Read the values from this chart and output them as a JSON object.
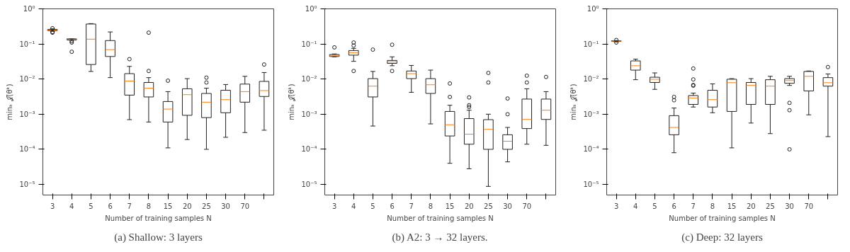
{
  "chart_data": [
    {
      "type": "box",
      "title": "(a) Shallow: 3 layers",
      "xlabel": "Number of training samples N",
      "ylabel": "minₖ 𝒥(θᵏ)",
      "categories": [
        "3",
        "4",
        "5",
        "6",
        "7",
        "8",
        "15",
        "20",
        "25",
        "30",
        "70",
        null
      ],
      "log": "y",
      "grid": false,
      "ylim": [
        5e-06,
        1
      ],
      "yticks": [
        {
          "value": 1e-05,
          "label": "10⁻⁵"
        },
        {
          "value": 0.0001,
          "label": "10⁻⁴"
        },
        {
          "value": 0.001,
          "label": "10⁻³"
        },
        {
          "value": 0.01,
          "label": "10⁻²"
        },
        {
          "value": 0.1,
          "label": "10⁻¹"
        },
        {
          "value": 1,
          "label": "10⁰"
        }
      ],
      "boxes": [
        {
          "low": 0.23,
          "q1": 0.24,
          "median": 0.25,
          "q3": 0.26,
          "high": 0.27,
          "outliers": [
            0.21,
            0.22,
            0.28
          ]
        },
        {
          "low": 0.13,
          "q1": 0.13,
          "median": 0.137,
          "q3": 0.14,
          "high": 0.14,
          "outliers": [
            0.06,
            0.11,
            0.12
          ]
        },
        {
          "low": 0.0165,
          "q1": 0.026,
          "median": 0.137,
          "q3": 0.37,
          "high": 0.38
        },
        {
          "low": 0.011,
          "q1": 0.044,
          "median": 0.069,
          "q3": 0.125,
          "high": 0.22
        },
        {
          "low": 0.0007,
          "q1": 0.0035,
          "median": 0.0088,
          "q3": 0.0143,
          "high": 0.023,
          "outliers": [
            0.037
          ]
        },
        {
          "low": 0.0006,
          "q1": 0.0031,
          "median": 0.0055,
          "q3": 0.008,
          "high": 0.011,
          "outliers": [
            0.017,
            0.21
          ]
        },
        {
          "low": 0.00011,
          "q1": 0.0006,
          "median": 0.0014,
          "q3": 0.0023,
          "high": 0.0044,
          "outliers": [
            0.009
          ]
        },
        {
          "low": 0.00019,
          "q1": 0.00093,
          "median": 0.0036,
          "q3": 0.0053,
          "high": 0.0103
        },
        {
          "low": 0.0001,
          "q1": 0.0008,
          "median": 0.0022,
          "q3": 0.0039,
          "high": 0.0055,
          "outliers": [
            0.008,
            0.011
          ]
        },
        {
          "low": 0.00022,
          "q1": 0.0011,
          "median": 0.0026,
          "q3": 0.0048,
          "high": 0.007
        },
        {
          "low": 0.0003,
          "q1": 0.0022,
          "median": 0.0044,
          "q3": 0.0072,
          "high": 0.012
        },
        {
          "low": 0.00035,
          "q1": 0.0032,
          "median": 0.0047,
          "q3": 0.0086,
          "high": 0.0154,
          "outliers": [
            0.026
          ]
        }
      ]
    },
    {
      "type": "box",
      "title": "(b) A2: 3 → 32 layers.",
      "xlabel": "Number of training samples N",
      "ylabel": "minₖ 𝒥(θᵏ)",
      "categories": [
        "3",
        "4",
        "5",
        "6",
        "7",
        "8",
        "15",
        "20",
        "25",
        "30",
        "70",
        null
      ],
      "log": "y",
      "grid": false,
      "ylim": [
        5e-06,
        1
      ],
      "yticks": [
        {
          "value": 1e-05,
          "label": "10⁻⁵"
        },
        {
          "value": 0.0001,
          "label": "10⁻⁴"
        },
        {
          "value": 0.001,
          "label": "10⁻³"
        },
        {
          "value": 0.01,
          "label": "10⁻²"
        },
        {
          "value": 0.1,
          "label": "10⁻¹"
        },
        {
          "value": 1,
          "label": "10⁰"
        }
      ],
      "boxes": [
        {
          "low": 0.043,
          "q1": 0.044,
          "median": 0.046,
          "q3": 0.05,
          "high": 0.052,
          "outliers": [
            0.08
          ]
        },
        {
          "low": 0.032,
          "q1": 0.048,
          "median": 0.056,
          "q3": 0.065,
          "high": 0.075,
          "outliers": [
            0.017,
            0.09,
            0.11
          ]
        },
        {
          "low": 0.00046,
          "q1": 0.0031,
          "median": 0.0063,
          "q3": 0.0103,
          "high": 0.0165,
          "outliers": [
            0.069
          ]
        },
        {
          "low": 0.024,
          "q1": 0.028,
          "median": 0.031,
          "q3": 0.034,
          "high": 0.043,
          "outliers": [
            0.017,
            0.095
          ]
        },
        {
          "low": 0.0042,
          "q1": 0.0103,
          "median": 0.0143,
          "q3": 0.017,
          "high": 0.0245
        },
        {
          "low": 0.00053,
          "q1": 0.0039,
          "median": 0.0069,
          "q3": 0.0103,
          "high": 0.018
        },
        {
          "low": 4e-05,
          "q1": 0.00024,
          "median": 0.0005,
          "q3": 0.0012,
          "high": 0.0018,
          "outliers": [
            0.0031,
            0.0075
          ]
        },
        {
          "low": 2.8e-05,
          "q1": 0.00014,
          "median": 0.00027,
          "q3": 0.00075,
          "high": 0.0013,
          "outliers": [
            0.0016,
            0.0018,
            0.003
          ]
        },
        {
          "low": 8.8e-06,
          "q1": 0.0001,
          "median": 0.00037,
          "q3": 0.0007,
          "high": 0.001,
          "outliers": [
            0.008,
            0.015
          ]
        },
        {
          "low": 4.4e-05,
          "q1": 0.0001,
          "median": 0.00017,
          "q3": 0.00026,
          "high": 0.00042,
          "outliers": [
            0.001,
            0.0028
          ]
        },
        {
          "low": 0.00014,
          "q1": 0.00039,
          "median": 0.00071,
          "q3": 0.0027,
          "high": 0.0053,
          "outliers": [
            0.008,
            0.0125
          ]
        },
        {
          "low": 0.00013,
          "q1": 0.00071,
          "median": 0.0013,
          "q3": 0.0027,
          "high": 0.0044,
          "outliers": [
            0.0115
          ]
        }
      ]
    },
    {
      "type": "box",
      "title": "(c) Deep: 32 layers",
      "xlabel": "Number of training samples N",
      "ylabel": "minₖ 𝒥(θᵏ)",
      "categories": [
        "3",
        "4",
        "5",
        "6",
        "7",
        "8",
        "15",
        "20",
        "25",
        "30",
        "70",
        null
      ],
      "log": "y",
      "grid": false,
      "ylim": [
        5e-06,
        1
      ],
      "yticks": [
        {
          "value": 1e-05,
          "label": "10⁻⁵"
        },
        {
          "value": 0.0001,
          "label": "10⁻⁴"
        },
        {
          "value": 0.001,
          "label": "10⁻³"
        },
        {
          "value": 0.01,
          "label": "10⁻²"
        },
        {
          "value": 0.1,
          "label": "10⁻¹"
        },
        {
          "value": 1,
          "label": "10⁰"
        }
      ],
      "boxes": [
        {
          "low": 0.115,
          "q1": 0.118,
          "median": 0.12,
          "q3": 0.123,
          "high": 0.125,
          "outliers": [
            0.11,
            0.13
          ]
        },
        {
          "low": 0.0096,
          "q1": 0.018,
          "median": 0.024,
          "q3": 0.033,
          "high": 0.037
        },
        {
          "low": 0.0051,
          "q1": 0.008,
          "median": 0.0099,
          "q3": 0.0113,
          "high": 0.015
        },
        {
          "low": 8e-05,
          "q1": 0.00026,
          "median": 0.00042,
          "q3": 0.00091,
          "high": 0.0015,
          "outliers": [
            0.0025,
            0.0031
          ]
        },
        {
          "low": 0.0016,
          "q1": 0.0019,
          "median": 0.0029,
          "q3": 0.0034,
          "high": 0.004,
          "outliers": [
            0.0065,
            0.0068,
            0.0098,
            0.02
          ]
        },
        {
          "low": 0.0011,
          "q1": 0.0016,
          "median": 0.0026,
          "q3": 0.0048,
          "high": 0.0073
        },
        {
          "low": 0.00011,
          "q1": 0.0012,
          "median": 0.0079,
          "q3": 0.0099,
          "high": 0.0103
        },
        {
          "low": 0.00056,
          "q1": 0.0019,
          "median": 0.0066,
          "q3": 0.008,
          "high": 0.0103
        },
        {
          "low": 0.00028,
          "q1": 0.0019,
          "median": 0.0063,
          "q3": 0.0096,
          "high": 0.012
        },
        {
          "low": 0.0066,
          "q1": 0.0076,
          "median": 0.0091,
          "q3": 0.0103,
          "high": 0.012,
          "outliers": [
            0.0001,
            0.0013,
            0.0021
          ]
        },
        {
          "low": 0.00096,
          "q1": 0.0046,
          "median": 0.012,
          "q3": 0.0165,
          "high": 0.017
        },
        {
          "low": 0.00023,
          "q1": 0.0063,
          "median": 0.0079,
          "q3": 0.011,
          "high": 0.014,
          "outliers": [
            0.022
          ]
        }
      ]
    }
  ]
}
